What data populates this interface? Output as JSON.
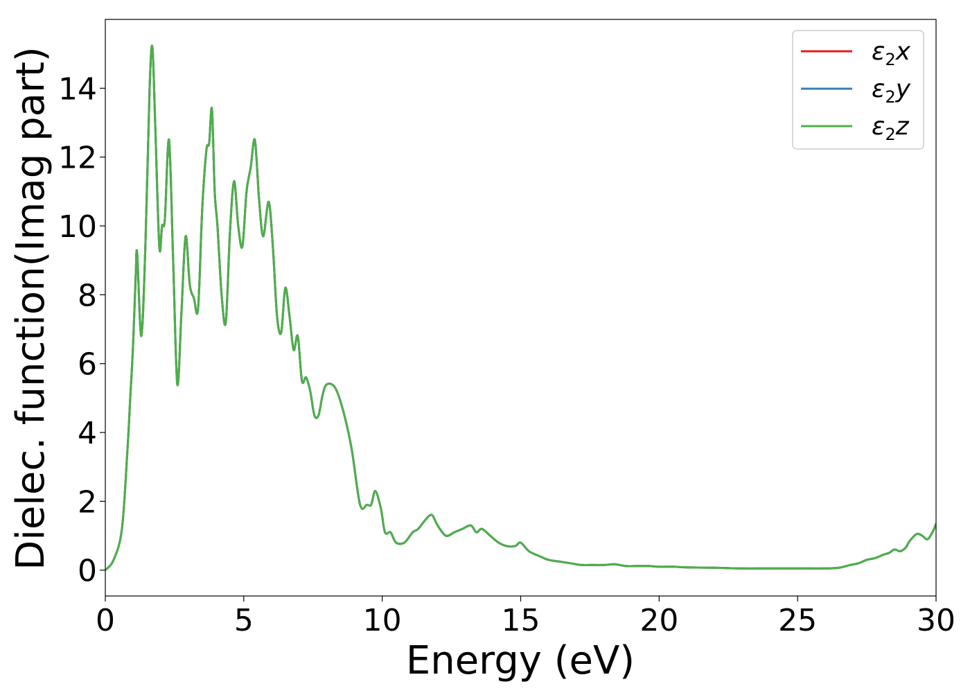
{
  "chart_data": {
    "type": "line",
    "xlabel": "Energy (eV)",
    "ylabel": "Dielec. function(Imag part)",
    "xlim": [
      0,
      30
    ],
    "ylim": [
      -0.75,
      16
    ],
    "xticks": [
      0,
      5,
      10,
      15,
      20,
      25,
      30
    ],
    "yticks": [
      0,
      2,
      4,
      6,
      8,
      10,
      12,
      14
    ],
    "grid": false,
    "legend_position": "top-right",
    "x": [
      0,
      0.3,
      0.6,
      0.8,
      0.9,
      1.0,
      1.1,
      1.15,
      1.3,
      1.45,
      1.6,
      1.7,
      1.8,
      1.95,
      2.05,
      2.15,
      2.3,
      2.45,
      2.6,
      2.75,
      2.9,
      3.05,
      3.2,
      3.35,
      3.5,
      3.65,
      3.75,
      3.85,
      3.95,
      4.05,
      4.2,
      4.35,
      4.5,
      4.65,
      4.8,
      4.95,
      5.1,
      5.25,
      5.4,
      5.55,
      5.7,
      5.9,
      6.05,
      6.2,
      6.35,
      6.5,
      6.65,
      6.8,
      6.95,
      7.1,
      7.25,
      7.4,
      7.55,
      7.7,
      7.85,
      8.0,
      8.3,
      8.6,
      8.9,
      9.2,
      9.45,
      9.6,
      9.75,
      9.95,
      10.1,
      10.3,
      10.5,
      10.8,
      11.1,
      11.3,
      11.6,
      11.8,
      12.0,
      12.3,
      12.6,
      12.9,
      13.2,
      13.4,
      13.6,
      13.9,
      14.2,
      14.5,
      14.8,
      15.0,
      15.3,
      15.7,
      16.0,
      16.4,
      16.8,
      17.2,
      17.6,
      18.0,
      18.4,
      18.8,
      19.2,
      19.6,
      20.0,
      20.5,
      21.0,
      22.0,
      23.0,
      24.0,
      25.0,
      26.0,
      26.5,
      26.9,
      27.2,
      27.5,
      27.8,
      28.1,
      28.3,
      28.5,
      28.7,
      28.9,
      29.05,
      29.3,
      29.5,
      29.7,
      29.9,
      30.0
    ],
    "series": [
      {
        "name": "ε₂x",
        "color": "#e41a1c",
        "values": [
          0.0,
          0.3,
          1.2,
          3.5,
          5.0,
          6.5,
          8.6,
          9.2,
          6.8,
          9.5,
          14.0,
          15.2,
          13.0,
          9.4,
          10.0,
          10.2,
          12.5,
          9.0,
          5.4,
          7.5,
          9.7,
          8.3,
          7.9,
          7.6,
          10.5,
          12.2,
          12.4,
          13.4,
          11.0,
          10.0,
          8.0,
          7.2,
          9.8,
          11.3,
          10.0,
          9.4,
          11.0,
          11.7,
          12.5,
          10.8,
          9.7,
          10.7,
          9.4,
          7.4,
          6.9,
          8.2,
          7.4,
          6.4,
          6.8,
          5.5,
          5.6,
          5.2,
          4.5,
          4.5,
          5.1,
          5.4,
          5.3,
          4.6,
          3.5,
          1.9,
          1.9,
          1.9,
          2.3,
          1.8,
          1.1,
          1.1,
          0.8,
          0.8,
          1.1,
          1.2,
          1.5,
          1.6,
          1.3,
          1.0,
          1.1,
          1.2,
          1.3,
          1.1,
          1.2,
          1.0,
          0.8,
          0.7,
          0.7,
          0.8,
          0.55,
          0.4,
          0.3,
          0.25,
          0.2,
          0.15,
          0.15,
          0.15,
          0.17,
          0.12,
          0.12,
          0.12,
          0.1,
          0.1,
          0.08,
          0.07,
          0.05,
          0.05,
          0.05,
          0.05,
          0.07,
          0.15,
          0.2,
          0.3,
          0.35,
          0.45,
          0.5,
          0.6,
          0.55,
          0.65,
          0.85,
          1.05,
          1.0,
          0.9,
          1.15,
          1.35
        ]
      },
      {
        "name": "ε₂y",
        "color": "#377eb8",
        "values": [
          0.0,
          0.3,
          1.2,
          3.5,
          5.0,
          6.5,
          8.6,
          9.2,
          6.8,
          9.5,
          14.0,
          15.2,
          13.0,
          9.4,
          10.0,
          10.2,
          12.5,
          9.0,
          5.4,
          7.5,
          9.7,
          8.3,
          7.9,
          7.6,
          10.5,
          12.2,
          12.4,
          13.4,
          11.0,
          10.0,
          8.0,
          7.2,
          9.8,
          11.3,
          10.0,
          9.4,
          11.0,
          11.7,
          12.5,
          10.8,
          9.7,
          10.7,
          9.4,
          7.4,
          6.9,
          8.2,
          7.4,
          6.4,
          6.8,
          5.5,
          5.6,
          5.2,
          4.5,
          4.5,
          5.1,
          5.4,
          5.3,
          4.6,
          3.5,
          1.9,
          1.9,
          1.9,
          2.3,
          1.8,
          1.1,
          1.1,
          0.8,
          0.8,
          1.1,
          1.2,
          1.5,
          1.6,
          1.3,
          1.0,
          1.1,
          1.2,
          1.3,
          1.1,
          1.2,
          1.0,
          0.8,
          0.7,
          0.7,
          0.8,
          0.55,
          0.4,
          0.3,
          0.25,
          0.2,
          0.15,
          0.15,
          0.15,
          0.17,
          0.12,
          0.12,
          0.12,
          0.1,
          0.1,
          0.08,
          0.07,
          0.05,
          0.05,
          0.05,
          0.05,
          0.07,
          0.15,
          0.2,
          0.3,
          0.35,
          0.45,
          0.5,
          0.6,
          0.55,
          0.65,
          0.85,
          1.05,
          1.0,
          0.9,
          1.15,
          1.35
        ]
      },
      {
        "name": "ε₂z",
        "color": "#4daf4a",
        "values": [
          0.0,
          0.3,
          1.2,
          3.5,
          5.0,
          6.5,
          8.6,
          9.2,
          6.8,
          9.5,
          14.0,
          15.2,
          13.0,
          9.4,
          10.0,
          10.2,
          12.5,
          9.0,
          5.4,
          7.5,
          9.7,
          8.3,
          7.9,
          7.6,
          10.5,
          12.2,
          12.4,
          13.4,
          11.0,
          10.0,
          8.0,
          7.2,
          9.8,
          11.3,
          10.0,
          9.4,
          11.0,
          11.7,
          12.5,
          10.8,
          9.7,
          10.7,
          9.4,
          7.4,
          6.9,
          8.2,
          7.4,
          6.4,
          6.8,
          5.5,
          5.6,
          5.2,
          4.5,
          4.5,
          5.1,
          5.4,
          5.3,
          4.6,
          3.5,
          1.9,
          1.9,
          1.9,
          2.3,
          1.8,
          1.1,
          1.1,
          0.8,
          0.8,
          1.1,
          1.2,
          1.5,
          1.6,
          1.3,
          1.0,
          1.1,
          1.2,
          1.3,
          1.1,
          1.2,
          1.0,
          0.8,
          0.7,
          0.7,
          0.8,
          0.55,
          0.4,
          0.3,
          0.25,
          0.2,
          0.15,
          0.15,
          0.15,
          0.17,
          0.12,
          0.12,
          0.12,
          0.1,
          0.1,
          0.08,
          0.07,
          0.05,
          0.05,
          0.05,
          0.05,
          0.07,
          0.15,
          0.2,
          0.3,
          0.35,
          0.45,
          0.5,
          0.6,
          0.55,
          0.65,
          0.85,
          1.05,
          1.0,
          0.9,
          1.15,
          1.35
        ]
      }
    ],
    "legend": [
      {
        "base": "ε",
        "sub": "2",
        "var": "x"
      },
      {
        "base": "ε",
        "sub": "2",
        "var": "y"
      },
      {
        "base": "ε",
        "sub": "2",
        "var": "z"
      }
    ]
  }
}
